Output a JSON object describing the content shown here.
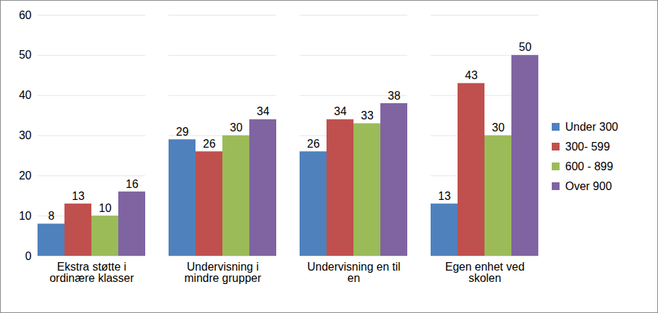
{
  "chart_data": {
    "type": "bar",
    "categories": [
      "Ekstra støtte i\nordinære klasser",
      "Undervisning i\nmindre grupper",
      "Undervisning en til\nen",
      "Egen enhet ved\nskolen"
    ],
    "series": [
      {
        "name": "Under 300",
        "color": "#4f81bd",
        "values": [
          8,
          29,
          26,
          13
        ]
      },
      {
        "name": "300- 599",
        "color": "#c0504d",
        "values": [
          13,
          26,
          34,
          43
        ]
      },
      {
        "name": "600 - 899",
        "color": "#9bbb59",
        "values": [
          10,
          30,
          33,
          30
        ]
      },
      {
        "name": "Over 900",
        "color": "#8064a2",
        "values": [
          16,
          34,
          38,
          50
        ]
      }
    ],
    "ylim": [
      0,
      60
    ],
    "yticks": [
      0,
      10,
      20,
      30,
      40,
      50,
      60
    ],
    "grid": true,
    "data_labels": true,
    "legend": "right"
  }
}
